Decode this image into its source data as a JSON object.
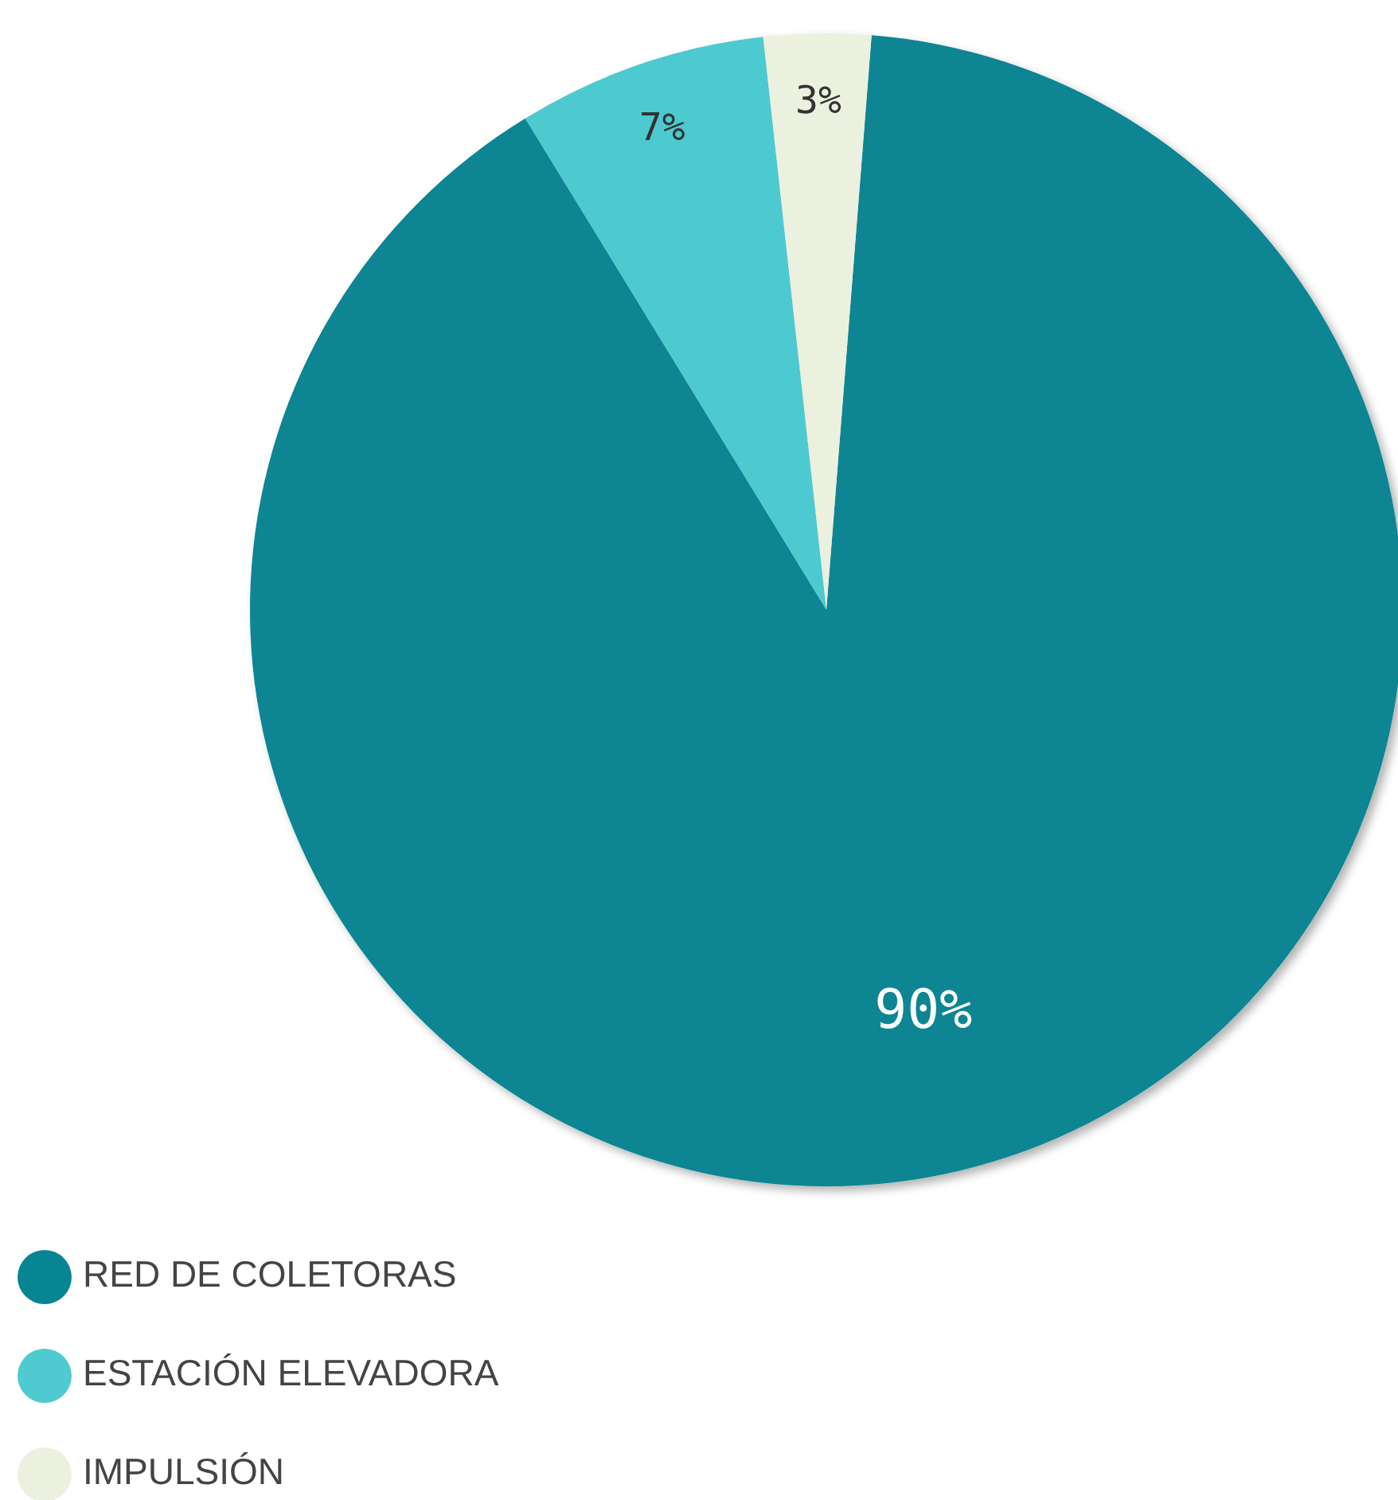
{
  "chart_data": {
    "type": "pie",
    "categories": [
      "RED DE COLETORAS",
      "ESTACIÓN ELEVADORA",
      "IMPULSIÓN"
    ],
    "values": [
      90,
      7,
      3
    ],
    "colors": [
      "#078592",
      "#4ecad0",
      "#ebf1de"
    ],
    "value_labels": [
      "90%",
      "7%",
      "3%"
    ],
    "legend": "bottom left"
  }
}
